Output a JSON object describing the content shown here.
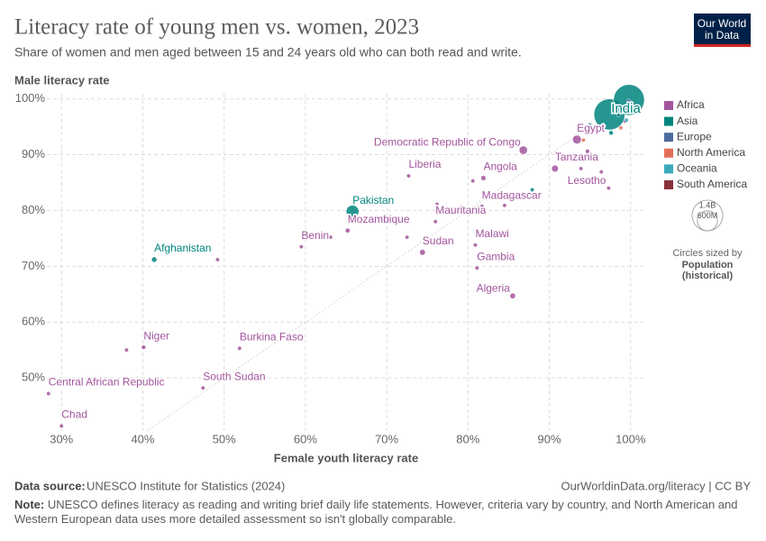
{
  "chart_data": {
    "type": "scatter",
    "title": "Literacy rate of young men vs. women, 2023",
    "subtitle": "Share of women and men aged between 15 and 24 years old who can both read and write.",
    "y_label": "Male literacy rate",
    "x_label": "Female youth literacy rate",
    "logo": [
      "Our World",
      "in Data"
    ],
    "xlim": [
      28.2,
      101.8
    ],
    "ylim": [
      40.5,
      100.9
    ],
    "xticks": [
      {
        "value": 30,
        "label": "30%"
      },
      {
        "value": 40,
        "label": "40%"
      },
      {
        "value": 50,
        "label": "50%"
      },
      {
        "value": 60,
        "label": "60%"
      },
      {
        "value": 70,
        "label": "70%"
      },
      {
        "value": 80,
        "label": "80%"
      },
      {
        "value": 90,
        "label": "90%"
      },
      {
        "value": 100,
        "label": "100%"
      }
    ],
    "yticks": [
      {
        "value": 50,
        "label": "50%"
      },
      {
        "value": 60,
        "label": "60%"
      },
      {
        "value": 70,
        "label": "70%"
      },
      {
        "value": 80,
        "label": "80%"
      },
      {
        "value": 90,
        "label": "90%"
      },
      {
        "value": 100,
        "label": "100%"
      }
    ],
    "grid": true,
    "legend": "right",
    "size_title": [
      "Circles sized by",
      "Population",
      "(historical)"
    ],
    "size_legend": [
      {
        "value": 1400000000,
        "label": "1.4B"
      },
      {
        "value": 600000000,
        "label": "600M"
      }
    ],
    "series": [
      {
        "name": "Africa",
        "color": "#a2559c",
        "labels": [
          "Egypt",
          "Democratic Republic of Congo",
          "Tanzania",
          "Lesotho",
          "Liberia",
          "Angola",
          "Madagascar",
          "Mauritania",
          "Mozambique",
          "Benin",
          "Sudan",
          "Malawi",
          "Gambia",
          "Algeria",
          "Niger",
          "Burkina Faso",
          "South Sudan",
          "Central African Republic",
          "Chad",
          null,
          null,
          null,
          null,
          null,
          null,
          null,
          null,
          null,
          null,
          null,
          null
        ],
        "x": [
          93.4,
          86.8,
          90.7,
          97.3,
          72.7,
          81.9,
          81.7,
          76.0,
          65.2,
          59.5,
          74.4,
          80.9,
          81.1,
          85.5,
          40.1,
          51.9,
          47.4,
          28.4,
          30.0,
          38.0,
          49.2,
          63.1,
          72.5,
          76.2,
          80.6,
          85.2,
          84.5,
          93.9,
          96.4,
          94.7,
          99.3
        ],
        "y": [
          92.7,
          90.8,
          87.5,
          84.0,
          86.2,
          85.8,
          80.7,
          78.0,
          76.4,
          73.5,
          72.5,
          73.8,
          69.7,
          64.7,
          55.5,
          55.3,
          48.2,
          47.2,
          41.4,
          55.0,
          71.2,
          75.2,
          75.2,
          81.1,
          85.3,
          88.5,
          80.9,
          87.5,
          86.9,
          90.6,
          96.0
        ],
        "size": [
          112000000,
          102000000,
          67000000,
          2300000,
          5400000,
          37000000,
          30000000,
          4900000,
          33000000,
          13700000,
          48000000,
          20000000,
          2700000,
          46000000,
          27000000,
          23000000,
          11000000,
          5700000,
          18000000,
          8000000,
          6000000,
          9000000,
          8000000,
          6000000,
          7000000,
          15000000,
          5000000,
          9000000,
          5000000,
          28000000,
          12000000
        ]
      },
      {
        "name": "Asia",
        "color": "#00847e",
        "labels": [
          "India",
          "Pakistan",
          "Afghanistan",
          null,
          null,
          null,
          null,
          null
        ],
        "x": [
          97.4,
          65.8,
          41.4,
          99.8,
          87.9,
          97.6,
          95.0,
          98.5
        ],
        "y": [
          97.2,
          79.8,
          71.2,
          99.8,
          83.7,
          93.9,
          95.3,
          97.1
        ],
        "size": [
          1430000000,
          240000000,
          42000000,
          1410000000,
          7000000,
          30000000,
          8000000,
          12000000
        ]
      },
      {
        "name": "Europe",
        "color": "#4c6a9c",
        "labels": [
          null
        ],
        "x": [
          99.8
        ],
        "y": [
          99.6
        ],
        "size": [
          6000000
        ]
      },
      {
        "name": "North America",
        "color": "#e56e5a",
        "labels": [
          null,
          null
        ],
        "x": [
          94.2,
          98.8
        ],
        "y": [
          92.6,
          94.8
        ],
        "size": [
          5000000,
          4000000
        ]
      },
      {
        "name": "Oceania",
        "color": "#38aaba",
        "labels": [
          null
        ],
        "x": [
          99.5
        ],
        "y": [
          96.2
        ],
        "size": [
          3000000
        ]
      },
      {
        "name": "South America",
        "color": "#883039",
        "labels": [
          null,
          null
        ],
        "x": [
          100.0,
          99.9
        ],
        "y": [
          98.7,
          98.4
        ],
        "size": [
          11000000,
          6000000
        ]
      }
    ],
    "source_label": "Data source:",
    "source": "UNESCO Institute for Statistics (2024)",
    "url": "OurWorldinData.org/literacy | CC BY",
    "note_label": "Note:",
    "note": "UNESCO defines literacy as reading and writing brief daily life statements. However, criteria vary by country, and North American and Western European data uses more detailed assessment so isn't globally comparable."
  }
}
